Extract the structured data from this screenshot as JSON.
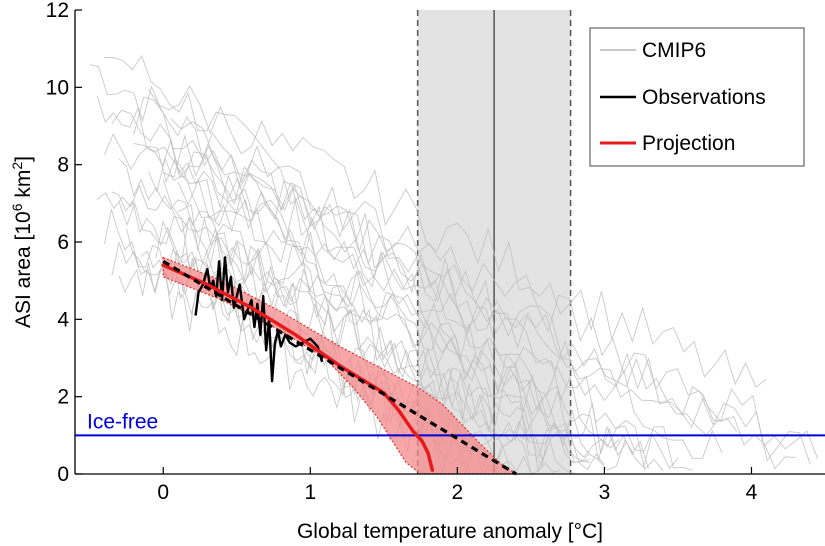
{
  "chart_data": {
    "type": "line",
    "xlabel": "Global temperature anomaly [°C]",
    "ylabel_main": "ASI area [10",
    "ylabel_sup1": "6",
    "ylabel_mid": " km",
    "ylabel_sup2": "2",
    "ylabel_end": "]",
    "xlim": [
      -0.6,
      4.5
    ],
    "ylim": [
      0,
      12
    ],
    "x_ticks": [
      0,
      1,
      2,
      3,
      4
    ],
    "y_ticks": [
      0,
      2,
      4,
      6,
      8,
      10,
      12
    ],
    "x_tick_labels": [
      "0",
      "1",
      "2",
      "3",
      "4"
    ],
    "y_tick_labels": [
      "0",
      "2",
      "4",
      "6",
      "8",
      "10",
      "12"
    ],
    "grid": false,
    "legend_position": "top-right",
    "legend": [
      {
        "label": "CMIP6",
        "color": "#c8c8c8"
      },
      {
        "label": "Observations",
        "color": "#000000"
      },
      {
        "label": "Projection",
        "color": "#e41a1c"
      }
    ],
    "colors": {
      "cmip6": "#c0c0c0",
      "observations": "#000000",
      "projection": "#e41a1c",
      "projection_band": "#f08080",
      "ice_free": "#0000dd",
      "shade": "#d9d9d9"
    },
    "ice_free": {
      "label": "Ice-free",
      "y": 1
    },
    "shaded_range": {
      "x_min": 1.73,
      "x_max": 2.77,
      "center": 2.25
    },
    "observations": {
      "x": [
        0.22,
        0.24,
        0.27,
        0.3,
        0.32,
        0.34,
        0.36,
        0.38,
        0.4,
        0.42,
        0.44,
        0.46,
        0.48,
        0.5,
        0.52,
        0.55,
        0.57,
        0.6,
        0.62,
        0.64,
        0.66,
        0.68,
        0.7,
        0.72,
        0.74,
        0.76,
        0.78,
        0.8,
        0.83,
        0.86,
        0.9,
        0.95,
        1.0,
        1.05,
        1.08
      ],
      "y": [
        4.1,
        4.7,
        4.9,
        5.3,
        4.8,
        5.0,
        4.6,
        5.5,
        4.5,
        5.6,
        4.7,
        5.1,
        4.3,
        4.6,
        4.9,
        4.0,
        4.2,
        4.5,
        3.8,
        4.4,
        3.6,
        4.6,
        3.2,
        4.0,
        2.4,
        3.4,
        3.7,
        3.3,
        3.6,
        3.4,
        3.3,
        3.4,
        3.5,
        3.3,
        2.9
      ]
    },
    "projection": {
      "x": [
        0.0,
        0.3,
        0.6,
        0.9,
        1.2,
        1.5,
        1.6,
        1.7,
        1.76,
        1.8,
        1.83
      ],
      "y": [
        5.4,
        4.9,
        4.3,
        3.6,
        2.8,
        2.1,
        1.65,
        1.1,
        0.85,
        0.55,
        0.1
      ]
    },
    "projection_band_upper": {
      "x": [
        0.0,
        0.4,
        0.8,
        1.2,
        1.5,
        1.75,
        1.9,
        2.0,
        2.15,
        2.3,
        2.4
      ],
      "y": [
        5.6,
        5.0,
        4.2,
        3.3,
        2.7,
        2.2,
        1.8,
        1.4,
        0.8,
        0.25,
        0.0
      ]
    },
    "projection_band_lower": {
      "x": [
        0.0,
        0.4,
        0.8,
        1.1,
        1.3,
        1.45,
        1.55,
        1.65,
        1.75
      ],
      "y": [
        5.1,
        4.5,
        3.7,
        3.0,
        2.2,
        1.5,
        0.9,
        0.3,
        0.0
      ]
    },
    "trend_dashed": {
      "x": [
        0.0,
        2.4
      ],
      "y": [
        5.5,
        0.0
      ]
    },
    "cmip6": [
      {
        "x0": -0.5,
        "x1": 3.1,
        "y0": 10.6,
        "y1": 0.3
      },
      {
        "x0": -0.4,
        "x1": 3.4,
        "y0": 11.0,
        "y1": 0.2
      },
      {
        "x0": -0.45,
        "x1": 2.9,
        "y0": 9.8,
        "y1": 0.1
      },
      {
        "x0": -0.35,
        "x1": 3.6,
        "y0": 9.2,
        "y1": 0.3
      },
      {
        "x0": -0.4,
        "x1": 3.2,
        "y0": 8.6,
        "y1": 0.1
      },
      {
        "x0": -0.3,
        "x1": 2.7,
        "y0": 8.0,
        "y1": 0.2
      },
      {
        "x0": -0.45,
        "x1": 3.0,
        "y0": 7.6,
        "y1": 0.0
      },
      {
        "x0": -0.35,
        "x1": 2.5,
        "y0": 7.2,
        "y1": 0.1
      },
      {
        "x0": -0.3,
        "x1": 2.9,
        "y0": 6.8,
        "y1": 0.2
      },
      {
        "x0": -0.4,
        "x1": 2.4,
        "y0": 6.4,
        "y1": 0.0
      },
      {
        "x0": -0.25,
        "x1": 2.2,
        "y0": 6.0,
        "y1": 0.1
      },
      {
        "x0": -0.35,
        "x1": 2.6,
        "y0": 5.6,
        "y1": 0.0
      },
      {
        "x0": -0.3,
        "x1": 2.1,
        "y0": 5.2,
        "y1": 0.1
      },
      {
        "x0": -0.1,
        "x1": 4.1,
        "y0": 10.0,
        "y1": 2.0
      },
      {
        "x0": 0.0,
        "x1": 4.4,
        "y0": 8.4,
        "y1": 0.3
      },
      {
        "x0": -0.2,
        "x1": 3.8,
        "y0": 9.4,
        "y1": 0.5
      },
      {
        "x0": -0.1,
        "x1": 3.3,
        "y0": 7.8,
        "y1": 0.2
      },
      {
        "x0": 0.1,
        "x1": 2.8,
        "y0": 6.6,
        "y1": 0.1
      },
      {
        "x0": 0.0,
        "x1": 3.5,
        "y0": 7.0,
        "y1": 0.1
      },
      {
        "x0": -0.2,
        "x1": 3.9,
        "y0": 8.8,
        "y1": 1.1
      },
      {
        "x0": 0.1,
        "x1": 4.3,
        "y0": 7.4,
        "y1": 0.4
      },
      {
        "x0": -0.15,
        "x1": 2.3,
        "y0": 5.8,
        "y1": 0.0
      },
      {
        "x0": -0.05,
        "x1": 2.9,
        "y0": 6.2,
        "y1": 0.2
      },
      {
        "x0": 0.05,
        "x1": 4.45,
        "y0": 9.0,
        "y1": 0.6
      }
    ]
  }
}
